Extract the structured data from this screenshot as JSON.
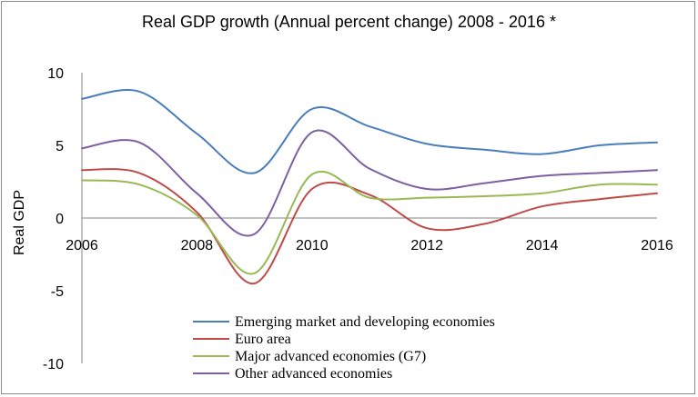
{
  "chart_data": {
    "type": "line",
    "title": "Real GDP growth (Annual percent change) 2008 - 2016 *",
    "ylabel": "Real GDP",
    "xlabel": "",
    "xlim": [
      2006,
      2016
    ],
    "ylim": [
      -10,
      10
    ],
    "x_ticks": [
      "2006",
      "2008",
      "2010",
      "2012",
      "2014",
      "2016"
    ],
    "y_ticks": [
      "10",
      "5",
      "0",
      "-5",
      "-10"
    ],
    "grid": false,
    "legend_position": "bottom-center",
    "x": [
      2006,
      2007,
      2008,
      2009,
      2010,
      2011,
      2012,
      2013,
      2014,
      2015,
      2016
    ],
    "series": [
      {
        "name": "Emerging market and developing economies",
        "color": "#4a7ebb",
        "values": [
          8.2,
          8.7,
          5.8,
          3.1,
          7.5,
          6.3,
          5.1,
          4.7,
          4.4,
          5.0,
          5.2
        ]
      },
      {
        "name": "Euro area",
        "color": "#be4b48",
        "values": [
          3.3,
          3.1,
          0.4,
          -4.5,
          2.0,
          1.6,
          -0.7,
          -0.4,
          0.8,
          1.3,
          1.7
        ]
      },
      {
        "name": "Major advanced economies (G7)",
        "color": "#98b954",
        "values": [
          2.6,
          2.3,
          0.2,
          -3.8,
          3.0,
          1.4,
          1.4,
          1.5,
          1.7,
          2.3,
          2.3
        ]
      },
      {
        "name": "Other advanced economies",
        "color": "#7d60a0",
        "values": [
          4.8,
          5.2,
          1.7,
          -1.1,
          5.9,
          3.4,
          2.0,
          2.4,
          2.9,
          3.1,
          3.3
        ]
      }
    ]
  }
}
